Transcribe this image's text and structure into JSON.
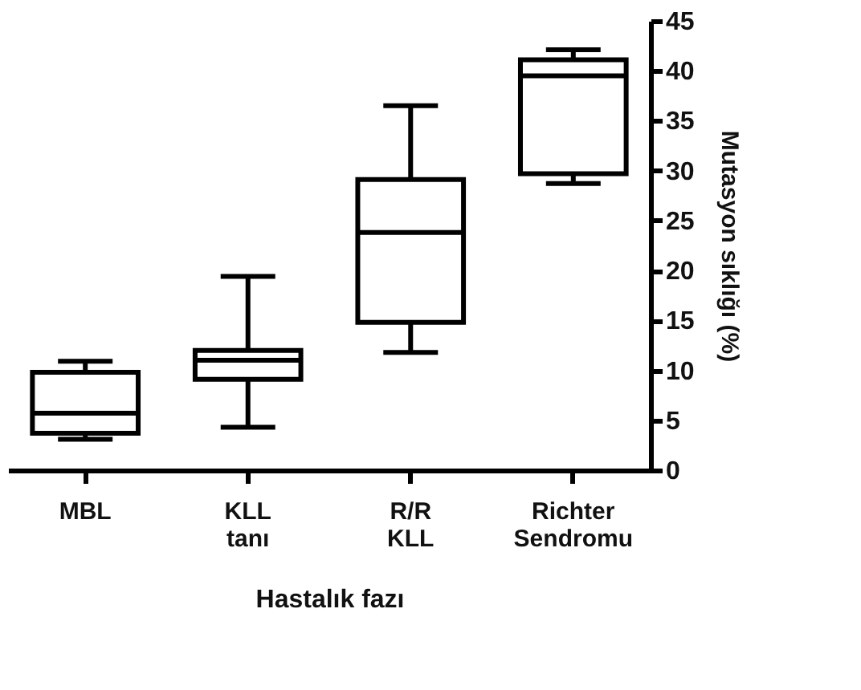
{
  "chart_data": {
    "type": "box",
    "xlabel": "Hastalık fazı",
    "ylabel": "Mutasyon sıklığı (%)",
    "categories": [
      "MBL",
      "KLL tanı",
      "R/R KLL",
      "Richter Sendromu"
    ],
    "boxes": [
      {
        "low": 3.1,
        "q1": 3.7,
        "median": 5.7,
        "q3": 9.8,
        "high": 10.9
      },
      {
        "low": 4.3,
        "q1": 9.1,
        "median": 11.0,
        "q3": 12.0,
        "high": 19.4
      },
      {
        "low": 11.8,
        "q1": 14.8,
        "median": 23.8,
        "q3": 29.1,
        "high": 36.5
      },
      {
        "low": 28.7,
        "q1": 29.7,
        "median": 39.5,
        "q3": 41.1,
        "high": 42.1
      }
    ],
    "color": "#000000",
    "ylim": [
      0,
      45
    ],
    "yticks": [
      0,
      5,
      10,
      15,
      20,
      25,
      30,
      35,
      40,
      45
    ],
    "grid": false
  }
}
